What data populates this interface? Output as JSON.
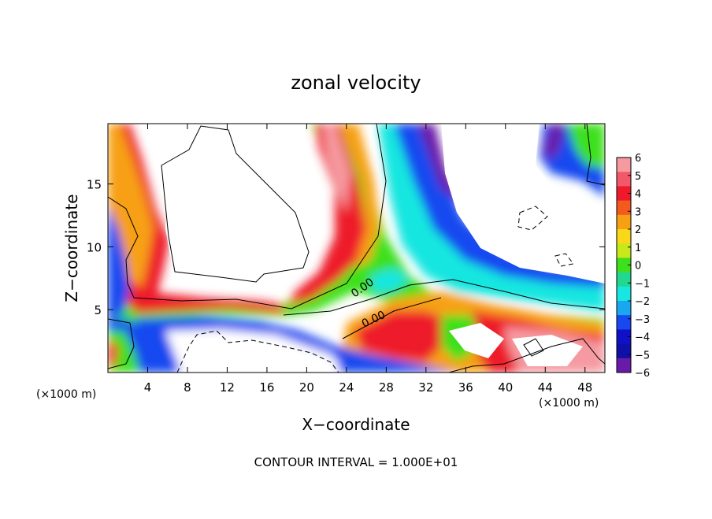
{
  "chart_data": {
    "type": "heatmap",
    "title": "zonal velocity",
    "xlabel": "X−coordinate",
    "ylabel": "Z−coordinate",
    "x_unit_left": "(×1000 m)",
    "x_unit_right": "(×1000 m)",
    "x_ticks": [
      4,
      8,
      12,
      16,
      20,
      24,
      28,
      32,
      36,
      40,
      44,
      48
    ],
    "y_ticks": [
      5,
      10,
      15
    ],
    "xlim": [
      0,
      50
    ],
    "ylim": [
      0,
      19.8
    ],
    "footer": "CONTOUR INTERVAL = 1.000E+01",
    "contour_labels": [
      "0.00",
      "0.00"
    ],
    "colorbar": {
      "labels": [
        "6",
        "5",
        "4",
        "3",
        "2",
        "1",
        "0",
        "−1",
        "−2",
        "−3",
        "−4",
        "−5",
        "−6"
      ],
      "range": [
        -6,
        6
      ],
      "colors": [
        "#f59aa0",
        "#f25868",
        "#ee1a2c",
        "#f25a1e",
        "#f7a014",
        "#f8d818",
        "#c8e81a",
        "#3ee01e",
        "#20d890",
        "#18e6e0",
        "#19a8f0",
        "#1848f0",
        "#1010c8",
        "#1010a8",
        "#6a1aa8"
      ]
    }
  }
}
